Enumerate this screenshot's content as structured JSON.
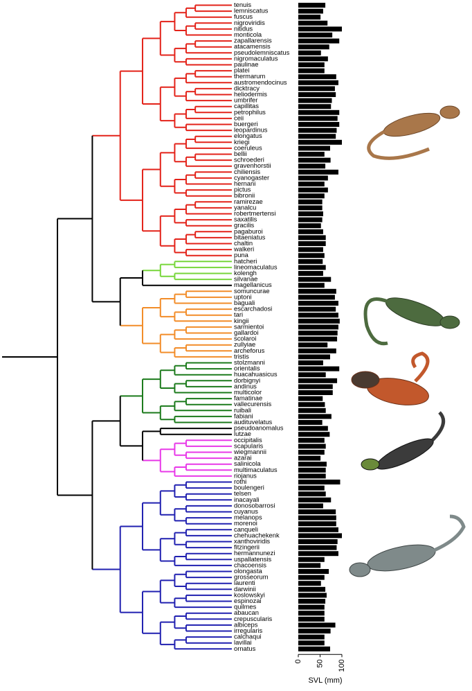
{
  "chart_data": {
    "type": "bar",
    "orientation": "horizontal",
    "categories": [
      "tenuis",
      "lemniscatus",
      "fuscus",
      "nigroviridis",
      "nitidus",
      "monticola",
      "zapallarensis",
      "atacamensis",
      "pseudolemniscatus",
      "nigromaculatus",
      "paulinae",
      "platei",
      "thermarum",
      "austromendocinus",
      "dicktracy",
      "heliodermis",
      "umbrifer",
      "capillitas",
      "petrophilus",
      "ceii",
      "buergeri",
      "leopardinus",
      "elongatus",
      "kriegi",
      "coeruleus",
      "bellii",
      "schroederi",
      "gravenhorstii",
      "chiliensis",
      "cyanogaster",
      "hernani",
      "pictus",
      "bibronii",
      "ramirezae",
      "yanalcu",
      "robertmertensi",
      "saxatilis",
      "gracilis",
      "pagaburoi",
      "bitaeniatus",
      "chaltin",
      "walkeri",
      "puna",
      "hatcheri",
      "lineomaculatus",
      "kolengh",
      "silvanae",
      "magellanicus",
      "somuncurae",
      "uptoni",
      "baguali",
      "escarchadosi",
      "tari",
      "kingii",
      "sarmientoi",
      "gallardoi",
      "scolaroi",
      "zullyiae",
      "archeforus",
      "tristis",
      "stolzmanni",
      "orientalis",
      "huacahuasicus",
      "dorbignyi",
      "andinus",
      "multicolor",
      "famatinae",
      "vallecurensis",
      "ruibali",
      "fabiani",
      "audituvelatus",
      "pseudoanomalus",
      "lutzae",
      "occipitalis",
      "scapularis",
      "wiegmannii",
      "azarai",
      "salinicola",
      "multimaculatus",
      "riojanus",
      "rothi",
      "boulengeri",
      "telsen",
      "inacayali",
      "donosobarrosi",
      "cuyanus",
      "melanops",
      "morenoi",
      "canqueli",
      "chehuachekenk",
      "xanthoviridis",
      "fitzingerii",
      "hermannunezi",
      "uspallatensis",
      "chacoensis",
      "olongasta",
      "grosseorum",
      "laurenti",
      "darwinii",
      "koslowskyi",
      "espinozai",
      "quilmes",
      "abaucan",
      "crepuscularis",
      "albiceps",
      "irregularis",
      "calchaqui",
      "lavillai",
      "ornatus"
    ],
    "values": [
      62,
      57,
      51,
      67,
      100,
      78,
      94,
      71,
      52,
      68,
      60,
      60,
      87,
      92,
      84,
      86,
      77,
      75,
      94,
      90,
      94,
      88,
      86,
      100,
      73,
      60,
      74,
      62,
      92,
      68,
      60,
      68,
      60,
      55,
      55,
      57,
      55,
      52,
      57,
      63,
      63,
      57,
      60,
      56,
      63,
      57,
      75,
      60,
      87,
      84,
      92,
      86,
      92,
      95,
      92,
      90,
      89,
      67,
      87,
      73,
      57,
      94,
      63,
      89,
      79,
      79,
      56,
      61,
      63,
      76,
      55,
      68,
      72,
      60,
      63,
      60,
      51,
      65,
      63,
      63,
      96,
      60,
      63,
      75,
      57,
      86,
      87,
      87,
      92,
      100,
      90,
      88,
      92,
      60,
      51,
      70,
      60,
      52,
      62,
      65,
      62,
      60,
      60,
      60,
      85,
      74,
      60,
      60,
      73
    ],
    "color": "#000000",
    "branch_colors": [
      "#e32219",
      "#e32219",
      "#e32219",
      "#e32219",
      "#e32219",
      "#e32219",
      "#e32219",
      "#e32219",
      "#e32219",
      "#e32219",
      "#e32219",
      "#e32219",
      "#e32219",
      "#e32219",
      "#e32219",
      "#e32219",
      "#e32219",
      "#e32219",
      "#e32219",
      "#e32219",
      "#e32219",
      "#e32219",
      "#e32219",
      "#e32219",
      "#e32219",
      "#e32219",
      "#e32219",
      "#e32219",
      "#e32219",
      "#e32219",
      "#e32219",
      "#e32219",
      "#e32219",
      "#e32219",
      "#e32219",
      "#e32219",
      "#e32219",
      "#e32219",
      "#e32219",
      "#e32219",
      "#e32219",
      "#e32219",
      "#e32219",
      "#77d63a",
      "#77d63a",
      "#77d63a",
      "#77d63a",
      "#000000",
      "#f28c28",
      "#f28c28",
      "#f28c28",
      "#f28c28",
      "#f28c28",
      "#f28c28",
      "#f28c28",
      "#f28c28",
      "#f28c28",
      "#f28c28",
      "#f28c28",
      "#f28c28",
      "#1b7a1b",
      "#1b7a1b",
      "#1b7a1b",
      "#1b7a1b",
      "#1b7a1b",
      "#1b7a1b",
      "#1b7a1b",
      "#1b7a1b",
      "#1b7a1b",
      "#1b7a1b",
      "#1b7a1b",
      "#000000",
      "#000000",
      "#e838e8",
      "#e838e8",
      "#e838e8",
      "#e838e8",
      "#e838e8",
      "#e838e8",
      "#e838e8",
      "#2020b0",
      "#2020b0",
      "#2020b0",
      "#2020b0",
      "#2020b0",
      "#2020b0",
      "#2020b0",
      "#2020b0",
      "#2020b0",
      "#2020b0",
      "#2020b0",
      "#2020b0",
      "#2020b0",
      "#2020b0",
      "#2020b0",
      "#2020b0",
      "#2020b0",
      "#2020b0",
      "#2020b0",
      "#2020b0",
      "#2020b0",
      "#2020b0",
      "#2020b0",
      "#2020b0",
      "#2020b0",
      "#2020b0",
      "#2020b0",
      "#2020b0",
      "#2020b0"
    ],
    "xlim": [
      0,
      100
    ],
    "xticks": [
      0,
      50,
      100
    ],
    "xlabel": "SVL (mm)"
  }
}
